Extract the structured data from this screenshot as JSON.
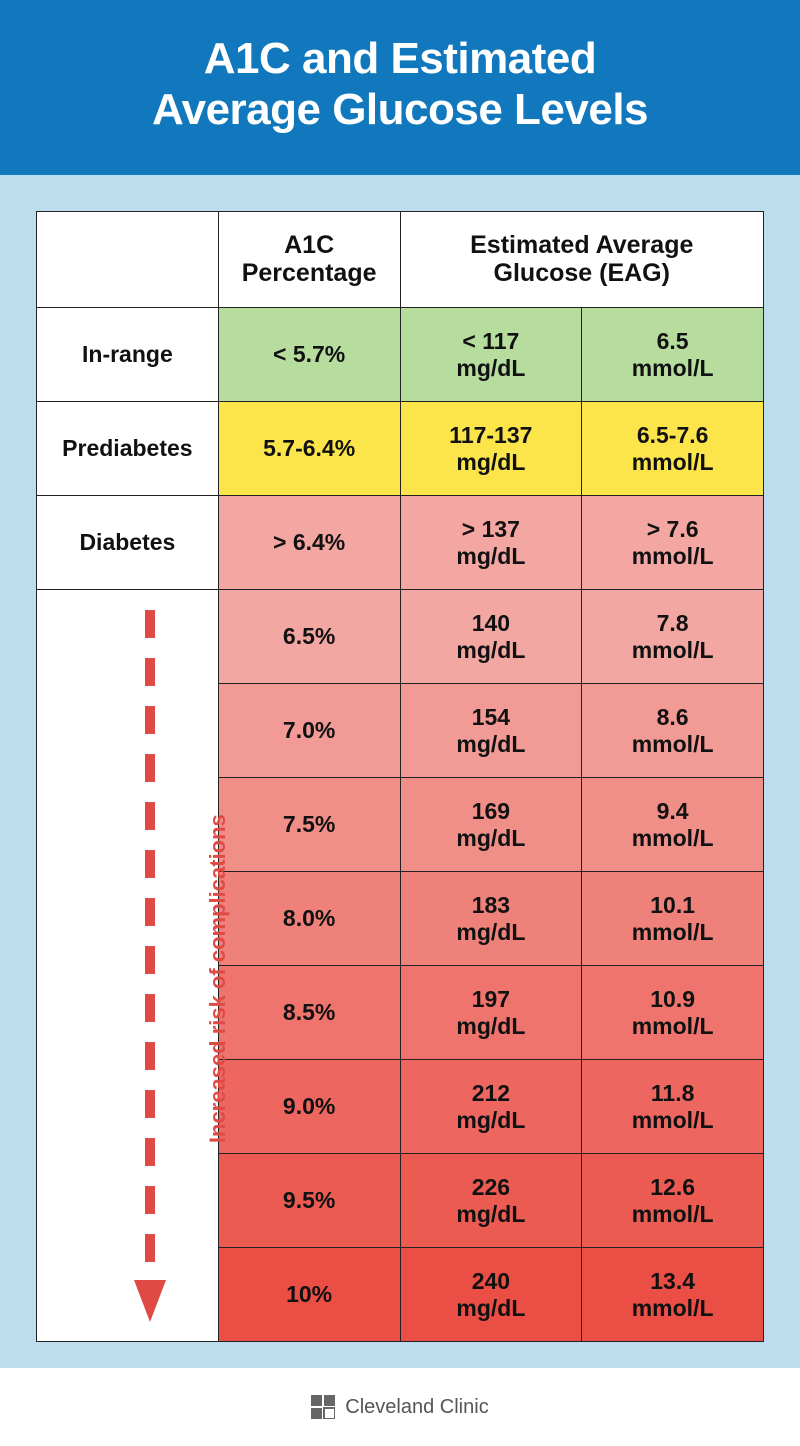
{
  "title_line1": "A1C and Estimated",
  "title_line2": "Average Glucose Levels",
  "columns": {
    "label": "",
    "a1c": "A1C\nPercentage",
    "eag": "Estimated Average\nGlucose (EAG)"
  },
  "risk_label": "Increased risk of complications",
  "footer_brand": "Cleveland Clinic",
  "colors": {
    "header_bg": "#1278bd",
    "page_bg": "#bdddee",
    "border": "#222222",
    "green": "#b6dd9e",
    "yellow": "#fbe54b",
    "red_arrow": "#e04a44",
    "gradient_top": "#f3a7a3",
    "gradient_bottom": "#ea4e45"
  },
  "rows": [
    {
      "label": "In-range",
      "a1c": "< 5.7%",
      "mgdl": "< 117",
      "mmol": "6.5",
      "bg": "#b6dd9e"
    },
    {
      "label": "Prediabetes",
      "a1c": "5.7-6.4%",
      "mgdl": "117-137",
      "mmol": "6.5-7.6",
      "bg": "#fbe54b"
    },
    {
      "label": "Diabetes",
      "a1c": "> 6.4%",
      "mgdl": "> 137",
      "mmol": "> 7.6",
      "bg": "#f3a6a2"
    }
  ],
  "gradient_rows": [
    {
      "a1c": "6.5%",
      "mgdl": "140",
      "mmol": "7.8"
    },
    {
      "a1c": "7.0%",
      "mgdl": "154",
      "mmol": "8.6"
    },
    {
      "a1c": "7.5%",
      "mgdl": "169",
      "mmol": "9.4"
    },
    {
      "a1c": "8.0%",
      "mgdl": "183",
      "mmol": "10.1"
    },
    {
      "a1c": "8.5%",
      "mgdl": "197",
      "mmol": "10.9"
    },
    {
      "a1c": "9.0%",
      "mgdl": "212",
      "mmol": "11.8"
    },
    {
      "a1c": "9.5%",
      "mgdl": "226",
      "mmol": "12.6"
    },
    {
      "a1c": "10%",
      "mgdl": "240",
      "mmol": "13.4"
    }
  ],
  "units": {
    "mgdl": "mg/dL",
    "mmol": "mmol/L"
  }
}
